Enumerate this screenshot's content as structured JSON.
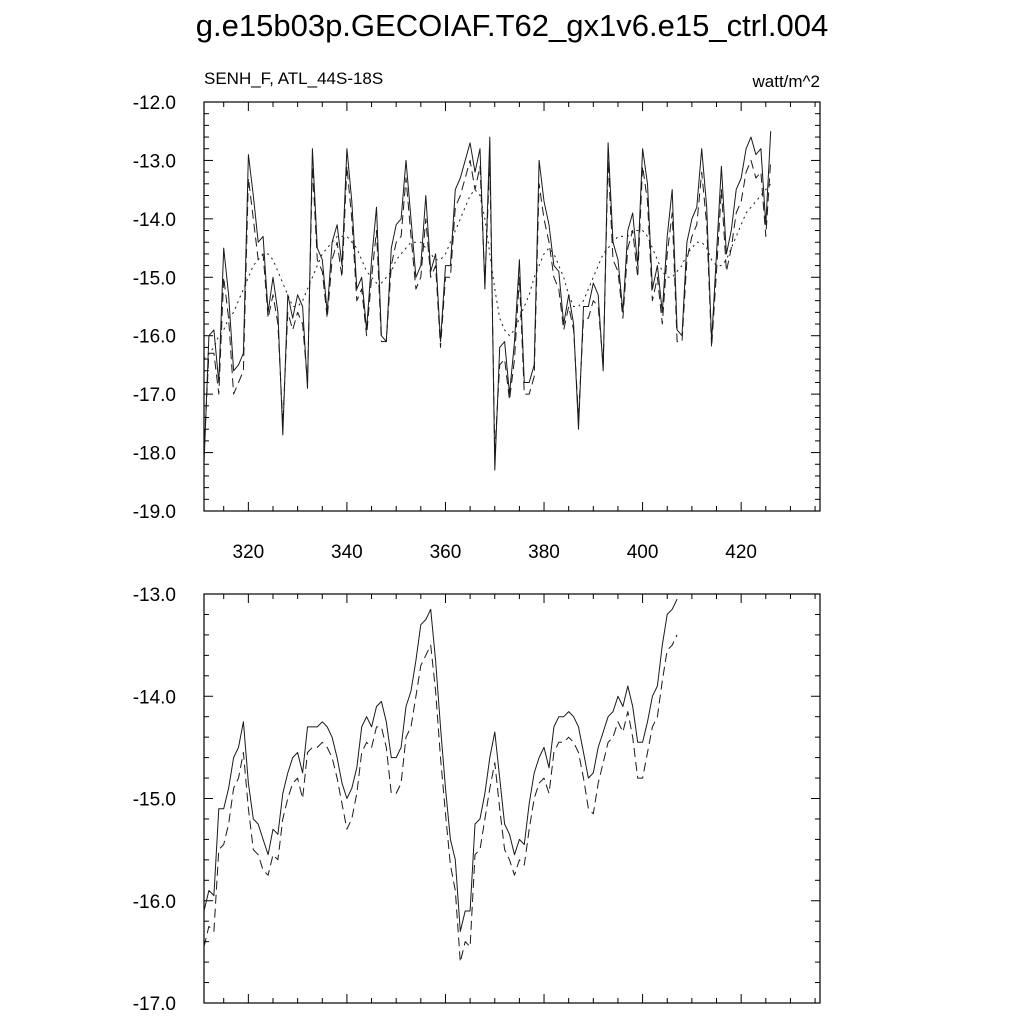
{
  "figure": {
    "title": "g.e15b03p.GECOIAF.T62_gx1v6.e15_ctrl.004"
  },
  "chart_data": [
    {
      "type": "line",
      "left_label": "SENH_F, ATL_44S-18S",
      "right_label": "watt/m^2",
      "xlim": [
        311,
        436
      ],
      "ylim": [
        -19.0,
        -12.0
      ],
      "x_ticks": [
        "320",
        "340",
        "360",
        "380",
        "400",
        "420"
      ],
      "y_ticks": [
        "-12.0",
        "-13.0",
        "-14.0",
        "-15.0",
        "-16.0",
        "-17.0",
        "-18.0",
        "-19.0"
      ],
      "x_start": 311,
      "series": [
        {
          "style": "solid",
          "values": [
            -18.2,
            -16.0,
            -15.9,
            -16.8,
            -14.5,
            -15.3,
            -16.6,
            -16.5,
            -16.3,
            -12.9,
            -13.6,
            -14.4,
            -14.3,
            -15.6,
            -15.0,
            -15.6,
            -17.7,
            -15.3,
            -15.7,
            -15.3,
            -15.5,
            -16.9,
            -12.8,
            -14.5,
            -14.7,
            -15.6,
            -14.4,
            -14.1,
            -14.8,
            -12.8,
            -13.7,
            -15.2,
            -15.0,
            -15.9,
            -14.7,
            -13.8,
            -16.0,
            -16.1,
            -14.5,
            -14.1,
            -14.0,
            -13.0,
            -14.0,
            -15.0,
            -14.8,
            -13.6,
            -14.9,
            -14.6,
            -16.1,
            -14.8,
            -14.8,
            -13.5,
            -13.3,
            -13.0,
            -12.7,
            -13.2,
            -12.8,
            -15.2,
            -12.6,
            -18.3,
            -16.2,
            -16.1,
            -17.0,
            -16.1,
            -14.7,
            -16.8,
            -16.8,
            -16.5,
            -13.0,
            -13.7,
            -14.1,
            -14.8,
            -14.9,
            -15.8,
            -15.3,
            -15.8,
            -17.6,
            -15.5,
            -15.5,
            -15.1,
            -15.3,
            -16.6,
            -12.7,
            -14.4,
            -14.7,
            -15.6,
            -14.2,
            -13.9,
            -14.8,
            -12.8,
            -13.4,
            -15.2,
            -14.8,
            -15.6,
            -14.3,
            -13.5,
            -15.9,
            -16.0,
            -14.4,
            -14.0,
            -13.8,
            -12.8,
            -13.8,
            -16.1,
            -14.6,
            -13.1,
            -14.6,
            -14.2,
            -13.5,
            -13.3,
            -12.8,
            -12.6,
            -12.9,
            -12.8,
            -14.1,
            -12.5
          ]
        },
        {
          "style": "dashed",
          "values": [
            -18.0,
            -16.3,
            -16.3,
            -17.0,
            -15.0,
            -15.7,
            -17.0,
            -16.8,
            -16.6,
            -13.3,
            -14.0,
            -14.7,
            -14.6,
            -15.7,
            -15.3,
            -15.8,
            -17.5,
            -15.6,
            -15.9,
            -15.6,
            -15.8,
            -16.8,
            -13.1,
            -14.7,
            -14.9,
            -15.7,
            -14.7,
            -14.4,
            -15.0,
            -13.1,
            -14.0,
            -15.4,
            -15.2,
            -16.0,
            -15.0,
            -14.2,
            -16.1,
            -16.1,
            -14.8,
            -14.4,
            -14.3,
            -13.3,
            -14.3,
            -15.2,
            -15.0,
            -14.0,
            -15.0,
            -14.8,
            -16.2,
            -15.0,
            -15.0,
            -13.8,
            -13.6,
            -13.3,
            -13.0,
            -13.5,
            -13.1,
            -15.1,
            -13.0,
            -18.0,
            -16.5,
            -16.4,
            -17.1,
            -16.4,
            -15.0,
            -17.0,
            -17.0,
            -16.7,
            -13.4,
            -14.0,
            -14.4,
            -15.0,
            -15.2,
            -15.9,
            -15.5,
            -15.9,
            -17.4,
            -15.7,
            -15.7,
            -15.4,
            -15.5,
            -16.5,
            -13.0,
            -14.7,
            -14.9,
            -15.7,
            -14.5,
            -14.2,
            -15.0,
            -13.1,
            -13.7,
            -15.4,
            -15.0,
            -15.8,
            -14.6,
            -13.9,
            -16.1,
            -16.1,
            -14.7,
            -14.3,
            -14.1,
            -13.2,
            -14.1,
            -16.2,
            -14.9,
            -13.5,
            -14.9,
            -14.5,
            -13.9,
            -13.7,
            -13.2,
            -13.0,
            -13.3,
            -13.2,
            -14.3,
            -13.0
          ]
        },
        {
          "style": "dotted",
          "values": [
            -16.4,
            -16.3,
            -16.2,
            -16.0,
            -15.9,
            -15.7,
            -15.6,
            -15.4,
            -15.2,
            -15.0,
            -14.8,
            -14.7,
            -14.6,
            -14.6,
            -14.7,
            -14.9,
            -15.1,
            -15.3,
            -15.5,
            -15.5,
            -15.4,
            -15.2,
            -15.0,
            -14.8,
            -14.6,
            -14.5,
            -14.4,
            -14.3,
            -14.3,
            -14.3,
            -14.4,
            -14.5,
            -14.7,
            -14.9,
            -15.0,
            -15.1,
            -15.1,
            -15.0,
            -14.9,
            -14.7,
            -14.6,
            -14.5,
            -14.4,
            -14.4,
            -14.4,
            -14.5,
            -14.6,
            -14.7,
            -14.7,
            -14.6,
            -14.4,
            -14.2,
            -14.0,
            -13.8,
            -13.6,
            -13.5,
            -13.6,
            -14.0,
            -14.6,
            -15.2,
            -15.7,
            -15.9,
            -16.0,
            -15.9,
            -15.7,
            -15.5,
            -15.3,
            -15.0,
            -14.8,
            -14.6,
            -14.5,
            -14.6,
            -14.8,
            -15.0,
            -15.3,
            -15.5,
            -15.5,
            -15.4,
            -15.2,
            -15.0,
            -14.8,
            -14.6,
            -14.5,
            -14.4,
            -14.3,
            -14.3,
            -14.3,
            -14.2,
            -14.2,
            -14.2,
            -14.3,
            -14.5,
            -14.7,
            -14.9,
            -15.0,
            -15.0,
            -14.9,
            -14.8,
            -14.6,
            -14.5,
            -14.4,
            -14.4,
            -14.5,
            -14.7,
            -14.8,
            -14.8,
            -14.7,
            -14.5,
            -14.3,
            -14.1,
            -13.9,
            -13.8,
            -13.7,
            -13.6,
            -13.5,
            -13.4
          ]
        }
      ]
    },
    {
      "type": "line",
      "xlim": [
        311,
        436
      ],
      "ylim": [
        -17.0,
        -13.0
      ],
      "y_ticks": [
        "-13.0",
        "-14.0",
        "-15.0",
        "-16.0",
        "-17.0"
      ],
      "x_start": 311,
      "series": [
        {
          "style": "solid",
          "values": [
            -16.1,
            -15.9,
            -15.95,
            -15.1,
            -15.1,
            -14.9,
            -14.6,
            -14.5,
            -14.25,
            -14.85,
            -15.2,
            -15.25,
            -15.4,
            -15.55,
            -15.3,
            -15.35,
            -14.95,
            -14.75,
            -14.6,
            -14.55,
            -14.75,
            -14.3,
            -14.3,
            -14.3,
            -14.25,
            -14.3,
            -14.4,
            -14.6,
            -14.85,
            -15.0,
            -14.9,
            -14.7,
            -14.3,
            -14.2,
            -14.3,
            -14.1,
            -14.05,
            -14.25,
            -14.6,
            -14.6,
            -14.5,
            -14.1,
            -13.95,
            -13.65,
            -13.3,
            -13.25,
            -13.15,
            -13.65,
            -14.3,
            -14.9,
            -15.4,
            -15.6,
            -16.3,
            -16.1,
            -16.1,
            -15.25,
            -15.2,
            -14.95,
            -14.6,
            -14.35,
            -14.8,
            -15.25,
            -15.35,
            -15.55,
            -15.4,
            -15.45,
            -15.05,
            -14.75,
            -14.6,
            -14.5,
            -14.7,
            -14.3,
            -14.2,
            -14.2,
            -14.15,
            -14.2,
            -14.3,
            -14.55,
            -14.8,
            -14.75,
            -14.5,
            -14.35,
            -14.2,
            -14.15,
            -14.0,
            -14.1,
            -13.9,
            -14.1,
            -14.45,
            -14.45,
            -14.25,
            -14.0,
            -13.9,
            -13.5,
            -13.2,
            -13.15,
            -13.05
          ]
        },
        {
          "style": "dashed",
          "values": [
            -16.45,
            -16.25,
            -16.3,
            -15.5,
            -15.45,
            -15.25,
            -14.9,
            -14.8,
            -14.55,
            -15.1,
            -15.5,
            -15.55,
            -15.7,
            -15.75,
            -15.55,
            -15.6,
            -15.2,
            -15.0,
            -14.85,
            -14.8,
            -15.0,
            -14.55,
            -14.5,
            -14.5,
            -14.45,
            -14.5,
            -14.6,
            -14.8,
            -15.05,
            -15.3,
            -15.2,
            -14.95,
            -14.55,
            -14.45,
            -14.5,
            -14.3,
            -14.3,
            -14.5,
            -14.95,
            -14.95,
            -14.85,
            -14.4,
            -14.3,
            -14.0,
            -13.7,
            -13.6,
            -13.5,
            -13.95,
            -14.6,
            -15.15,
            -15.65,
            -15.9,
            -16.6,
            -16.4,
            -16.45,
            -15.55,
            -15.5,
            -15.2,
            -14.9,
            -14.65,
            -15.1,
            -15.5,
            -15.6,
            -15.75,
            -15.6,
            -15.65,
            -15.3,
            -15.0,
            -14.85,
            -14.8,
            -14.95,
            -14.55,
            -14.45,
            -14.45,
            -14.4,
            -14.45,
            -14.55,
            -14.8,
            -15.1,
            -15.15,
            -14.85,
            -14.65,
            -14.45,
            -14.4,
            -14.25,
            -14.35,
            -14.15,
            -14.4,
            -14.8,
            -14.8,
            -14.55,
            -14.3,
            -14.2,
            -13.85,
            -13.55,
            -13.5,
            -13.4
          ]
        }
      ]
    }
  ]
}
